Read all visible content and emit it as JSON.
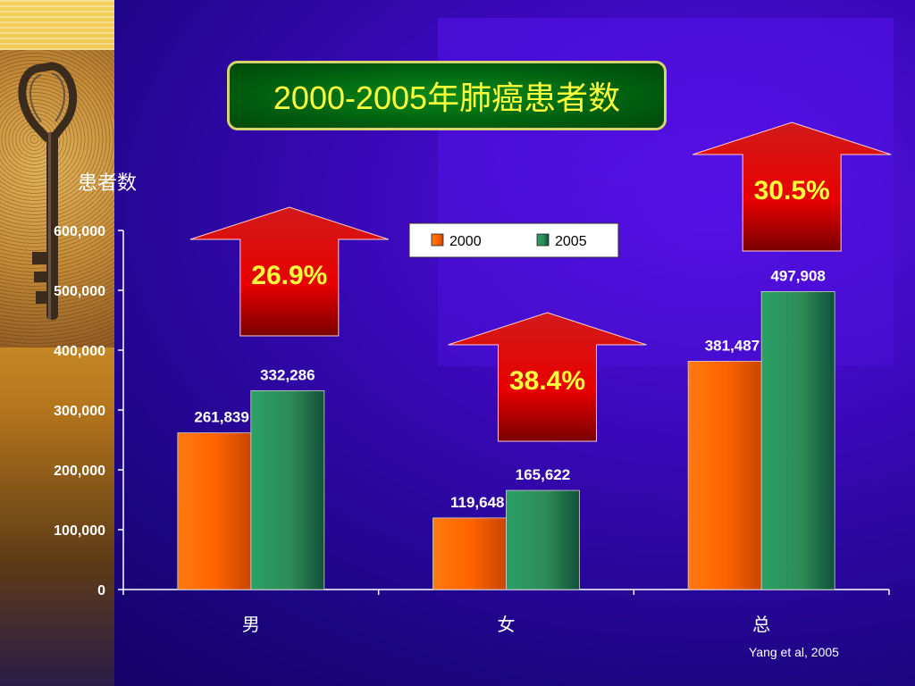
{
  "slide": {
    "title": "2000-2005年肺癌患者数",
    "citation": "Yang et al, 2005"
  },
  "chart_data": {
    "type": "bar",
    "title": "2000-2005年肺癌患者数",
    "ylabel": "患者数",
    "xlabel": "",
    "categories": [
      "男",
      "女",
      "总"
    ],
    "series": [
      {
        "name": "2000",
        "values": [
          261839,
          119648,
          381487
        ],
        "value_labels": [
          "261,839",
          "119,648",
          "381,487"
        ],
        "color": "#ff6a00"
      },
      {
        "name": "2005",
        "values": [
          332286,
          165622,
          497908
        ],
        "value_labels": [
          "332,286",
          "165,622",
          "497,908"
        ],
        "color": "#2e8b57"
      }
    ],
    "ylim": [
      0,
      600000
    ],
    "yticks": [
      0,
      100000,
      200000,
      300000,
      400000,
      500000,
      600000
    ],
    "ytick_labels": [
      "0",
      "100,000",
      "200,000",
      "300,000",
      "400,000",
      "500,000",
      "600,000"
    ],
    "legend_placement": "top-center",
    "grid": false,
    "annotations": [
      {
        "category": "男",
        "text": "26.9%"
      },
      {
        "category": "女",
        "text": "38.4%"
      },
      {
        "category": "总",
        "text": "30.5%"
      }
    ]
  }
}
